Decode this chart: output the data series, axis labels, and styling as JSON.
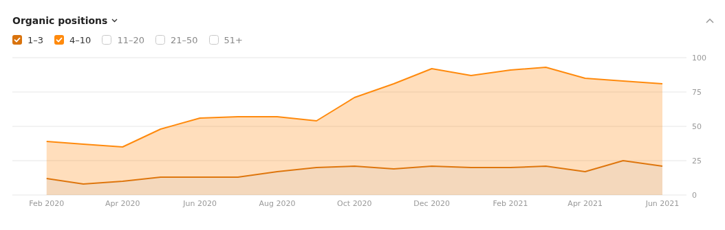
{
  "chart_data": {
    "type": "area",
    "title": "Organic positions",
    "stacked": true,
    "grid": "y",
    "legend": "top left",
    "x": [
      "2020-02",
      "2020-03",
      "2020-04",
      "2020-05",
      "2020-06",
      "2020-07",
      "2020-08",
      "2020-09",
      "2020-10",
      "2020-11",
      "2020-12",
      "2021-01",
      "2021-02",
      "2021-03",
      "2021-04",
      "2021-05",
      "2021-06"
    ],
    "xlim": [
      "2020-01-05",
      "2021-06-20"
    ],
    "xticks": [
      {
        "value": "2020-02",
        "label": "Feb 2020"
      },
      {
        "value": "2020-04",
        "label": "Apr 2020"
      },
      {
        "value": "2020-06",
        "label": "Jun 2020"
      },
      {
        "value": "2020-08",
        "label": "Aug 2020"
      },
      {
        "value": "2020-10",
        "label": "Oct 2020"
      },
      {
        "value": "2020-12",
        "label": "Dec 2020"
      },
      {
        "value": "2021-02",
        "label": "Feb 2021"
      },
      {
        "value": "2021-04",
        "label": "Apr 2021"
      },
      {
        "value": "2021-06",
        "label": "Jun 2021"
      }
    ],
    "ylim": [
      0,
      100
    ],
    "yticks": [
      0,
      25,
      50,
      75,
      100
    ],
    "series": [
      {
        "name": "1–3",
        "color": "#d9730d",
        "values": [
          12,
          8,
          10,
          13,
          13,
          13,
          17,
          20,
          21,
          19,
          21,
          20,
          20,
          21,
          17,
          25,
          21
        ]
      },
      {
        "name": "4–10",
        "color": "#ff8a0d",
        "values": [
          27,
          29,
          25,
          35,
          43,
          44,
          40,
          34,
          50,
          62,
          71,
          67,
          71,
          72,
          68,
          58,
          60
        ]
      },
      {
        "name": "11–20",
        "values": [
          null,
          null,
          null,
          null,
          null,
          null,
          null,
          null,
          null,
          null,
          null,
          null,
          null,
          null,
          null,
          null,
          null
        ]
      },
      {
        "name": "21–50",
        "values": [
          null,
          null,
          null,
          null,
          null,
          null,
          null,
          null,
          null,
          null,
          null,
          null,
          null,
          null,
          null,
          null,
          null
        ]
      },
      {
        "name": "51+",
        "values": [
          null,
          null,
          null,
          null,
          null,
          null,
          null,
          null,
          null,
          null,
          null,
          null,
          null,
          null,
          null,
          null,
          null
        ]
      }
    ]
  }
}
